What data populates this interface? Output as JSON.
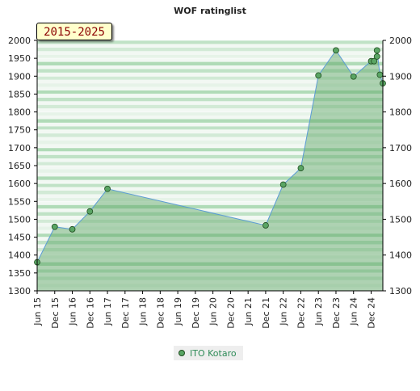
{
  "chart_data": {
    "type": "area",
    "title": "WOF ratinglist",
    "period_label": "2015-2025",
    "xlabel": "",
    "ylabel": "",
    "ylim": [
      1300,
      2000
    ],
    "y_ticks": [
      1300,
      1350,
      1400,
      1450,
      1500,
      1550,
      1600,
      1650,
      1700,
      1750,
      1800,
      1850,
      1900,
      1950,
      2000
    ],
    "y_ticks_right": [
      1300,
      1400,
      1500,
      1600,
      1700,
      1800,
      1900,
      2000
    ],
    "x_range": [
      "2015-06",
      "2025-04"
    ],
    "x_ticks": [
      "Jun 15",
      "Dec 15",
      "Jun 16",
      "Dec 16",
      "Jun 17",
      "Dec 17",
      "Jun 18",
      "Dec 18",
      "Jun 19",
      "Dec 19",
      "Jun 20",
      "Dec 20",
      "Jun 21",
      "Dec 21",
      "Jun 22",
      "Dec 22",
      "Jun 23",
      "Dec 23",
      "Jun 24",
      "Dec 24"
    ],
    "grid": "horizontal bands",
    "legend_position": "bottom",
    "series": [
      {
        "name": "ITO Kotaro",
        "color": "#5aa564",
        "line_color": "#5b9bd5",
        "points": [
          {
            "x": "2015-06",
            "y": 1380
          },
          {
            "x": "2015-12",
            "y": 1479
          },
          {
            "x": "2016-06",
            "y": 1472
          },
          {
            "x": "2016-12",
            "y": 1522
          },
          {
            "x": "2017-06",
            "y": 1585
          },
          {
            "x": "2021-12",
            "y": 1483
          },
          {
            "x": "2022-06",
            "y": 1597
          },
          {
            "x": "2022-12",
            "y": 1643
          },
          {
            "x": "2023-06",
            "y": 1902
          },
          {
            "x": "2023-12",
            "y": 1972
          },
          {
            "x": "2024-06",
            "y": 1899
          },
          {
            "x": "2024-12",
            "y": 1942
          },
          {
            "x": "2025-01",
            "y": 1942
          },
          {
            "x": "2025-02",
            "y": 1955
          },
          {
            "x": "2025-02",
            "y": 1972
          },
          {
            "x": "2025-03",
            "y": 1904
          },
          {
            "x": "2025-04",
            "y": 1880
          }
        ]
      }
    ]
  }
}
